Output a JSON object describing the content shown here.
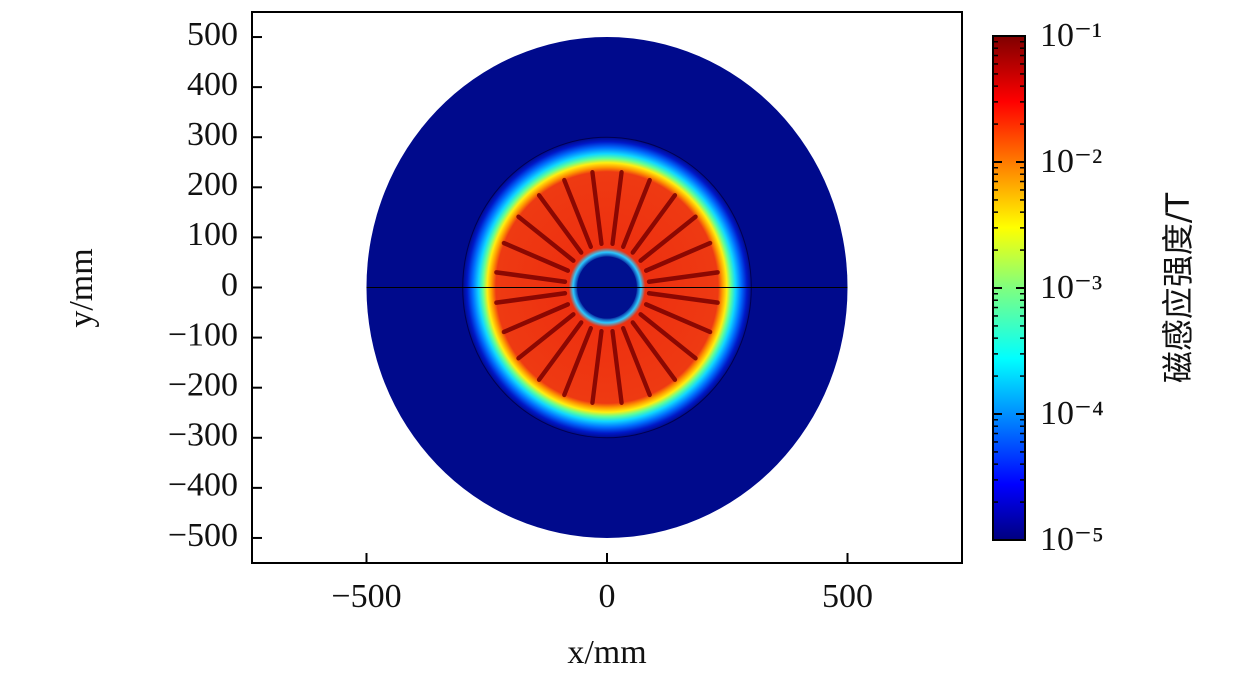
{
  "chart_data": {
    "type": "field",
    "x_label": "x/mm",
    "y_label": "y/mm",
    "xlim": [
      -738,
      738
    ],
    "ylim": [
      -550,
      550
    ],
    "xticks": [
      {
        "value": -500,
        "label": "−500"
      },
      0,
      500
    ],
    "yticks": [
      {
        "value": -500,
        "label": "−500"
      },
      {
        "value": -400,
        "label": "−400"
      },
      {
        "value": -300,
        "label": "−300"
      },
      {
        "value": -200,
        "label": "−200"
      },
      {
        "value": -100,
        "label": "−100"
      },
      0,
      100,
      200,
      300,
      400,
      500
    ],
    "colorbar": {
      "label": "磁感应强度/T",
      "log": true,
      "colormap": "jet",
      "lim": [
        1e-05,
        0.1
      ],
      "ticks": [
        {
          "value": 1e-05,
          "label": "10⁻⁵"
        },
        {
          "value": 0.0001,
          "label": "10⁻⁴"
        },
        {
          "value": 0.001,
          "label": "10⁻³"
        },
        {
          "value": 0.01,
          "label": "10⁻²"
        },
        {
          "value": 0.1,
          "label": "10⁻¹"
        }
      ]
    }
  }
}
